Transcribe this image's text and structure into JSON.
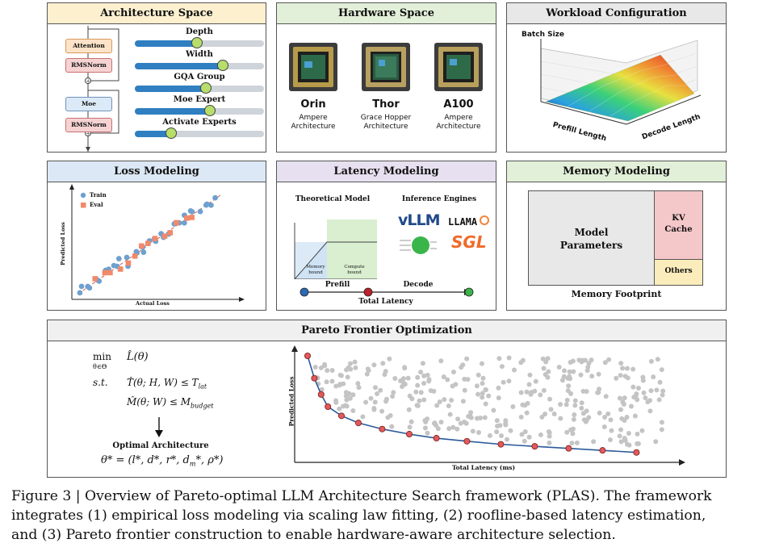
{
  "architecture_space": {
    "title": "Architecture Space",
    "blocks": [
      "Attention",
      "RMSNorm",
      "Moe",
      "RMSNorm"
    ],
    "sliders": [
      {
        "label": "Depth",
        "value": 0.48
      },
      {
        "label": "Width",
        "value": 0.68
      },
      {
        "label": "GQA Group",
        "value": 0.55
      },
      {
        "label": "Moe Expert",
        "value": 0.58
      },
      {
        "label": "Activate Experts",
        "value": 0.28
      }
    ]
  },
  "hardware_space": {
    "title": "Hardware Space",
    "chips": [
      {
        "name": "Orin",
        "sub1": "Ampere",
        "sub2": "Architecture"
      },
      {
        "name": "Thor",
        "sub1": "Grace Hopper",
        "sub2": "Architecture"
      },
      {
        "name": "A100",
        "sub1": "Ampere",
        "sub2": "Architecture"
      }
    ]
  },
  "workload": {
    "title": "Workload Configuration",
    "z_label": "Batch Size",
    "x_label": "Prefill Length",
    "y_label": "Decode Length"
  },
  "loss_modeling": {
    "title": "Loss Modeling",
    "legend_train": "Train",
    "legend_eval": "Eval",
    "ylabel": "Predicted Loss",
    "xlabel": "Actual Loss",
    "colors": {
      "train": "#6fa0cf",
      "eval": "#f08a6a"
    }
  },
  "latency_modeling": {
    "title": "Latency Modeling",
    "theoretical_title": "Theoretical Model",
    "memory_bound": "Memory bound",
    "compute_bound": "Compute bound",
    "engines_title": "Inference Engines",
    "engine_vllm": "vLLM",
    "engine_llama": "LLAMA",
    "engine_sgl": "SGL",
    "prefill": "Prefill",
    "decode": "Decode",
    "total_latency": "Total Latency"
  },
  "memory_modeling": {
    "title": "Memory Modeling",
    "model_params_1": "Model",
    "model_params_2": "Parameters",
    "kv_1": "KV",
    "kv_2": "Cache",
    "others": "Others",
    "footprint": "Memory Footprint"
  },
  "pareto": {
    "title": "Pareto Frontier Optimization",
    "min_label": "min",
    "min_sub": "θ∈Θ",
    "objective": "L̂(θ)",
    "st": "s.t.",
    "constraint1": "T̂(θ; H, W) ≤ T",
    "constraint1_sub": "lat",
    "constraint2": "M̂(θ; W) ≤ M",
    "constraint2_sub": "budget",
    "optimal_title": "Optimal Architecture",
    "optimal_formula": "θ* = (l*, d*, r*, d",
    "optimal_formula_sub": "m",
    "optimal_formula_end": "*, ρ*)",
    "ylabel": "Predicted Loss",
    "xlabel": "Total Latency (ms)"
  },
  "chart_data": {
    "type": "scatter",
    "xlabel": "Total Latency (ms)",
    "ylabel": "Predicted Loss",
    "frontier": {
      "x": [
        0.0,
        0.02,
        0.04,
        0.06,
        0.1,
        0.15,
        0.22,
        0.3,
        0.38,
        0.47,
        0.57,
        0.67,
        0.77,
        0.87,
        0.97
      ],
      "y": [
        1.0,
        0.78,
        0.62,
        0.5,
        0.41,
        0.34,
        0.28,
        0.23,
        0.19,
        0.16,
        0.13,
        0.11,
        0.09,
        0.07,
        0.05
      ]
    }
  },
  "caption": {
    "line1": "Figure 3 | Overview of Pareto-optimal LLM Architecture Search framework (PLAS). The framework",
    "line2": "integrates (1) empirical loss modeling via scaling law fitting, (2) roofline-based latency estimation,",
    "line3": "and (3) Pareto frontier construction to enable hardware-aware architecture selection."
  }
}
